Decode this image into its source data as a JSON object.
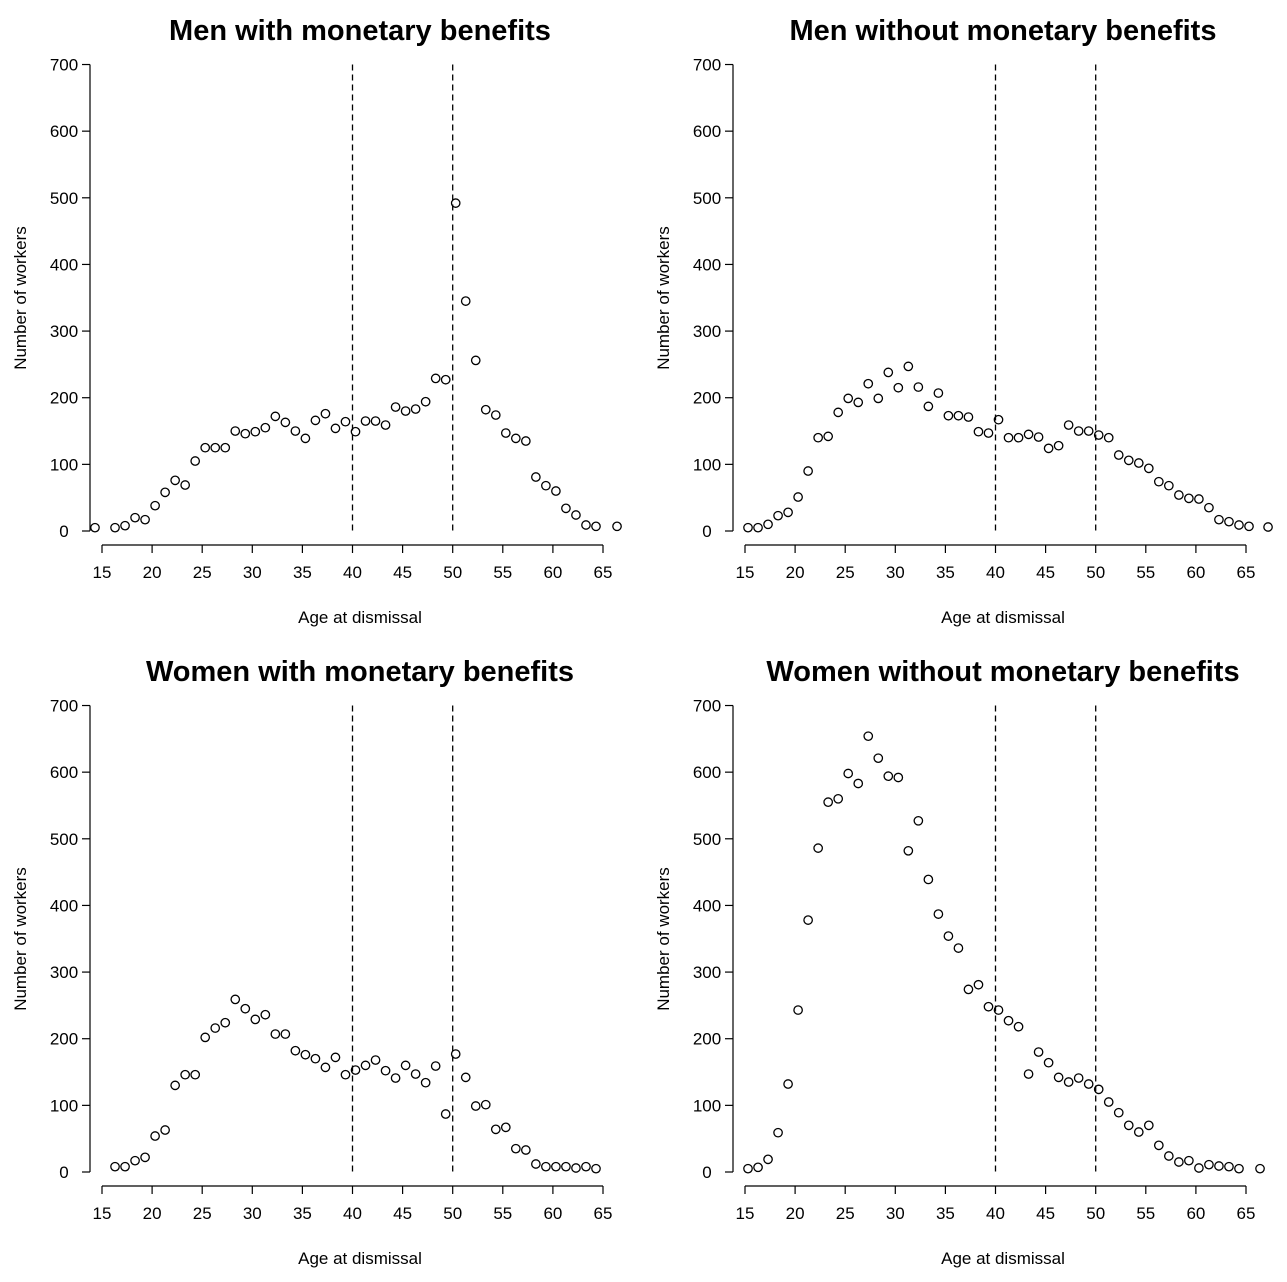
{
  "chart_data": [
    {
      "type": "scatter",
      "title": "Men with monetary benefits",
      "xlabel": "Age at dismissal",
      "ylabel": "Number of workers",
      "xticks": [
        15,
        20,
        25,
        30,
        35,
        40,
        45,
        50,
        55,
        60,
        65
      ],
      "yticks": [
        0,
        100,
        200,
        300,
        400,
        500,
        600,
        700
      ],
      "xlim": [
        15,
        65
      ],
      "ylim": [
        0,
        700
      ],
      "grid": false,
      "vlines": [
        40,
        50
      ],
      "x": [
        14.3,
        16.3,
        17.3,
        18.3,
        19.3,
        20.3,
        21.3,
        22.3,
        23.3,
        24.3,
        25.3,
        26.3,
        27.3,
        28.3,
        29.3,
        30.3,
        31.3,
        32.3,
        33.3,
        34.3,
        35.3,
        36.3,
        37.3,
        38.3,
        39.3,
        40.3,
        41.3,
        42.3,
        43.3,
        44.3,
        45.3,
        46.3,
        47.3,
        48.3,
        49.3,
        50.3,
        51.3,
        52.3,
        53.3,
        54.3,
        55.3,
        56.3,
        57.3,
        58.3,
        59.3,
        60.3,
        61.3,
        62.3,
        63.3,
        64.3,
        66.4
      ],
      "y": [
        5,
        5,
        8,
        20,
        17,
        38,
        58,
        76,
        69,
        105,
        125,
        125,
        125,
        150,
        146,
        149,
        155,
        172,
        163,
        150,
        139,
        166,
        176,
        154,
        164,
        149,
        165,
        165,
        159,
        186,
        180,
        183,
        194,
        229,
        227,
        492,
        345,
        256,
        182,
        174,
        147,
        139,
        135,
        81,
        68,
        60,
        34,
        24,
        9,
        7,
        7
      ]
    },
    {
      "type": "scatter",
      "title": "Men without monetary benefits",
      "xlabel": "Age at dismissal",
      "ylabel": "Number of workers",
      "xticks": [
        15,
        20,
        25,
        30,
        35,
        40,
        45,
        50,
        55,
        60,
        65
      ],
      "yticks": [
        0,
        100,
        200,
        300,
        400,
        500,
        600,
        700
      ],
      "xlim": [
        15,
        65
      ],
      "ylim": [
        0,
        700
      ],
      "grid": false,
      "vlines": [
        40,
        50
      ],
      "x": [
        15.3,
        16.3,
        17.3,
        18.3,
        19.3,
        20.3,
        21.3,
        22.3,
        23.3,
        24.3,
        25.3,
        26.3,
        27.3,
        28.3,
        29.3,
        30.3,
        31.3,
        32.3,
        33.3,
        34.3,
        35.3,
        36.3,
        37.3,
        38.3,
        39.3,
        40.3,
        41.3,
        42.3,
        43.3,
        44.3,
        45.3,
        46.3,
        47.3,
        48.3,
        49.3,
        50.3,
        51.3,
        52.3,
        53.3,
        54.3,
        55.3,
        56.3,
        57.3,
        58.3,
        59.3,
        60.3,
        61.3,
        62.3,
        63.3,
        64.3,
        65.3,
        67.2
      ],
      "y": [
        5,
        5,
        10,
        23,
        28,
        51,
        90,
        140,
        142,
        178,
        199,
        193,
        221,
        199,
        238,
        215,
        247,
        216,
        187,
        207,
        173,
        173,
        171,
        149,
        147,
        167,
        140,
        140,
        145,
        141,
        124,
        128,
        159,
        150,
        150,
        144,
        140,
        114,
        106,
        102,
        94,
        74,
        68,
        54,
        49,
        48,
        35,
        17,
        14,
        9,
        7,
        6
      ]
    },
    {
      "type": "scatter",
      "title": "Women with monetary benefits",
      "xlabel": "Age at dismissal",
      "ylabel": "Number of workers",
      "xticks": [
        15,
        20,
        25,
        30,
        35,
        40,
        45,
        50,
        55,
        60,
        65
      ],
      "yticks": [
        0,
        100,
        200,
        300,
        400,
        500,
        600,
        700
      ],
      "xlim": [
        15,
        65
      ],
      "ylim": [
        0,
        700
      ],
      "grid": false,
      "vlines": [
        40,
        50
      ],
      "x": [
        16.3,
        17.3,
        18.3,
        19.3,
        20.3,
        21.3,
        22.3,
        23.3,
        24.3,
        25.3,
        26.3,
        27.3,
        28.3,
        29.3,
        30.3,
        31.3,
        32.3,
        33.3,
        34.3,
        35.3,
        36.3,
        37.3,
        38.3,
        39.3,
        40.3,
        41.3,
        42.3,
        43.3,
        44.3,
        45.3,
        46.3,
        47.3,
        48.3,
        49.3,
        50.3,
        51.3,
        52.3,
        53.3,
        54.3,
        55.3,
        56.3,
        57.3,
        58.3,
        59.3,
        60.3,
        61.3,
        62.3,
        63.3,
        64.3
      ],
      "y": [
        8,
        8,
        17,
        22,
        54,
        63,
        130,
        146,
        146,
        202,
        216,
        224,
        259,
        245,
        229,
        236,
        207,
        207,
        182,
        176,
        170,
        157,
        172,
        146,
        153,
        160,
        168,
        152,
        141,
        160,
        147,
        134,
        159,
        87,
        177,
        142,
        99,
        101,
        64,
        67,
        35,
        33,
        12,
        8,
        8,
        8,
        6,
        8,
        5
      ]
    },
    {
      "type": "scatter",
      "title": "Women without monetary benefits",
      "xlabel": "Age at dismissal",
      "ylabel": "Number of workers",
      "xticks": [
        15,
        20,
        25,
        30,
        35,
        40,
        45,
        50,
        55,
        60,
        65
      ],
      "yticks": [
        0,
        100,
        200,
        300,
        400,
        500,
        600,
        700
      ],
      "xlim": [
        15,
        65
      ],
      "ylim": [
        0,
        700
      ],
      "grid": false,
      "vlines": [
        40,
        50
      ],
      "x": [
        15.3,
        16.3,
        17.3,
        18.3,
        19.3,
        20.3,
        21.3,
        22.3,
        23.3,
        24.3,
        25.3,
        26.3,
        27.3,
        28.3,
        29.3,
        30.3,
        31.3,
        32.3,
        33.3,
        34.3,
        35.3,
        36.3,
        37.3,
        38.3,
        39.3,
        40.3,
        41.3,
        42.3,
        43.3,
        44.3,
        45.3,
        46.3,
        47.3,
        48.3,
        49.3,
        50.3,
        51.3,
        52.3,
        53.3,
        54.3,
        55.3,
        56.3,
        57.3,
        58.3,
        59.3,
        60.3,
        61.3,
        62.3,
        63.3,
        64.3,
        66.4
      ],
      "y": [
        5,
        7,
        19,
        59,
        132,
        243,
        378,
        486,
        555,
        560,
        598,
        583,
        654,
        621,
        594,
        592,
        482,
        527,
        439,
        387,
        354,
        336,
        274,
        281,
        248,
        243,
        227,
        218,
        147,
        180,
        164,
        142,
        135,
        141,
        132,
        124,
        105,
        89,
        70,
        60,
        70,
        40,
        24,
        15,
        17,
        6,
        11,
        9,
        8,
        5,
        5
      ]
    }
  ]
}
